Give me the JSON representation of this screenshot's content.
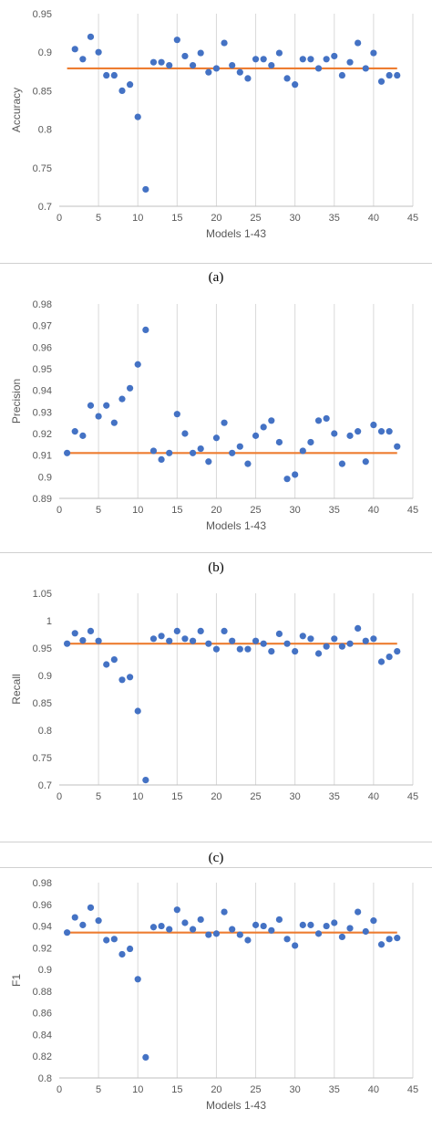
{
  "figure": {
    "captions": [
      "(a)",
      "(b)",
      "(c)"
    ],
    "colors": {
      "points": "#4472C4",
      "mean_line": "#ED7D31",
      "grid": "#d9d9d9",
      "frame": "#bfbfbf",
      "separator": "#d0d0d0"
    }
  },
  "chart_data": [
    {
      "type": "scatter",
      "title": "",
      "xlabel": "Models 1-43",
      "ylabel": "Accuracy",
      "xlim": [
        0,
        45
      ],
      "ylim": [
        0.7,
        0.95
      ],
      "xticks": [
        "0",
        "5",
        "10",
        "15",
        "20",
        "25",
        "30",
        "35",
        "40",
        "45"
      ],
      "yticks": [
        "0.7",
        "0.75",
        "0.8",
        "0.85",
        "0.9",
        "0.95"
      ],
      "x": [
        2,
        3,
        4,
        5,
        6,
        7,
        8,
        9,
        10,
        11,
        12,
        13,
        14,
        15,
        16,
        17,
        18,
        19,
        20,
        21,
        22,
        23,
        24,
        25,
        26,
        27,
        28,
        29,
        30,
        31,
        32,
        33,
        34,
        35,
        36,
        37,
        38,
        39,
        40,
        41,
        42,
        43
      ],
      "y": [
        0.904,
        0.891,
        0.92,
        0.9,
        0.87,
        0.87,
        0.85,
        0.858,
        0.816,
        0.722,
        0.887,
        0.887,
        0.883,
        0.916,
        0.895,
        0.883,
        0.899,
        0.874,
        0.879,
        0.912,
        0.883,
        0.874,
        0.866,
        0.891,
        0.891,
        0.883,
        0.899,
        0.866,
        0.858,
        0.891,
        0.891,
        0.879,
        0.891,
        0.895,
        0.87,
        0.887,
        0.912,
        0.879,
        0.899,
        0.862,
        0.87,
        0.87
      ],
      "mean_line": {
        "x": [
          1,
          43
        ],
        "y": 0.879
      }
    },
    {
      "type": "scatter",
      "title": "",
      "xlabel": "Models 1-43",
      "ylabel": "Precision",
      "xlim": [
        0,
        45
      ],
      "ylim": [
        0.89,
        0.98
      ],
      "xticks": [
        "0",
        "5",
        "10",
        "15",
        "20",
        "25",
        "30",
        "35",
        "40",
        "45"
      ],
      "yticks": [
        "0.89",
        "0.9",
        "0.91",
        "0.92",
        "0.93",
        "0.94",
        "0.95",
        "0.96",
        "0.97",
        "0.98"
      ],
      "x": [
        1,
        2,
        3,
        4,
        5,
        6,
        7,
        8,
        9,
        10,
        11,
        12,
        13,
        14,
        15,
        16,
        17,
        18,
        19,
        20,
        21,
        22,
        23,
        24,
        25,
        26,
        27,
        28,
        29,
        30,
        31,
        32,
        33,
        34,
        35,
        36,
        37,
        38,
        39,
        40,
        41,
        42,
        43
      ],
      "y": [
        0.911,
        0.921,
        0.919,
        0.933,
        0.928,
        0.933,
        0.925,
        0.936,
        0.941,
        0.952,
        0.968,
        0.912,
        0.908,
        0.911,
        0.929,
        0.92,
        0.911,
        0.913,
        0.907,
        0.918,
        0.925,
        0.911,
        0.914,
        0.906,
        0.919,
        0.923,
        0.926,
        0.916,
        0.899,
        0.901,
        0.912,
        0.916,
        0.926,
        0.927,
        0.92,
        0.906,
        0.919,
        0.921,
        0.907,
        0.924,
        0.921,
        0.921,
        0.914
      ],
      "mean_line": {
        "x": [
          1,
          43
        ],
        "y": 0.911
      }
    },
    {
      "type": "scatter",
      "title": "",
      "xlabel": "",
      "ylabel": "Recall",
      "xlim": [
        0,
        45
      ],
      "ylim": [
        0.7,
        1.05
      ],
      "xticks": [
        "0",
        "5",
        "10",
        "15",
        "20",
        "25",
        "30",
        "35",
        "40",
        "45"
      ],
      "yticks": [
        "0.7",
        "0.75",
        "0.8",
        "0.85",
        "0.9",
        "0.95",
        "1",
        "1.05"
      ],
      "x": [
        1,
        2,
        3,
        4,
        5,
        6,
        7,
        8,
        9,
        10,
        11,
        12,
        13,
        14,
        15,
        16,
        17,
        18,
        19,
        20,
        21,
        22,
        23,
        24,
        25,
        26,
        27,
        28,
        29,
        30,
        31,
        32,
        33,
        34,
        35,
        36,
        37,
        38,
        39,
        40,
        41,
        42,
        43
      ],
      "y": [
        0.958,
        0.977,
        0.964,
        0.981,
        0.963,
        0.92,
        0.929,
        0.892,
        0.897,
        0.835,
        0.709,
        0.967,
        0.972,
        0.963,
        0.981,
        0.967,
        0.963,
        0.981,
        0.958,
        0.948,
        0.981,
        0.963,
        0.948,
        0.948,
        0.963,
        0.958,
        0.944,
        0.976,
        0.958,
        0.944,
        0.972,
        0.967,
        0.94,
        0.953,
        0.967,
        0.953,
        0.958,
        0.986,
        0.963,
        0.967,
        0.925,
        0.934,
        0.944
      ],
      "mean_line": {
        "x": [
          1,
          43
        ],
        "y": 0.958
      }
    },
    {
      "type": "scatter",
      "title": "",
      "xlabel": "Models 1-43",
      "ylabel": "F1",
      "xlim": [
        0,
        45
      ],
      "ylim": [
        0.8,
        0.98
      ],
      "xticks": [
        "0",
        "5",
        "10",
        "15",
        "20",
        "25",
        "30",
        "35",
        "40",
        "45"
      ],
      "yticks": [
        "0.8",
        "0.82",
        "0.84",
        "0.86",
        "0.88",
        "0.9",
        "0.92",
        "0.94",
        "0.96",
        "0.98"
      ],
      "x": [
        1,
        2,
        3,
        4,
        5,
        6,
        7,
        8,
        9,
        10,
        11,
        12,
        13,
        14,
        15,
        16,
        17,
        18,
        19,
        20,
        21,
        22,
        23,
        24,
        25,
        26,
        27,
        28,
        29,
        30,
        31,
        32,
        33,
        34,
        35,
        36,
        37,
        38,
        39,
        40,
        41,
        42,
        43
      ],
      "y": [
        0.934,
        0.948,
        0.941,
        0.957,
        0.945,
        0.927,
        0.928,
        0.914,
        0.919,
        0.891,
        0.819,
        0.939,
        0.94,
        0.937,
        0.955,
        0.943,
        0.937,
        0.946,
        0.932,
        0.933,
        0.953,
        0.937,
        0.932,
        0.927,
        0.941,
        0.94,
        0.936,
        0.946,
        0.928,
        0.922,
        0.941,
        0.941,
        0.933,
        0.94,
        0.943,
        0.93,
        0.938,
        0.953,
        0.935,
        0.945,
        0.923,
        0.928,
        0.929
      ],
      "mean_line": {
        "x": [
          1,
          43
        ],
        "y": 0.934
      }
    }
  ]
}
